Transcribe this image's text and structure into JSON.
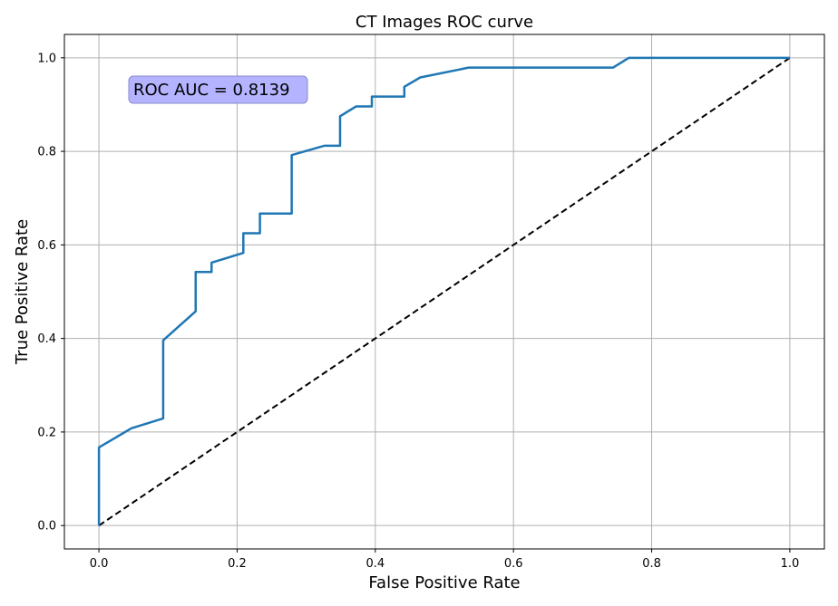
{
  "chart_data": {
    "type": "line",
    "title": "CT Images ROC curve",
    "xlabel": "False Positive Rate",
    "ylabel": "True Positive Rate",
    "xlim": [
      -0.05,
      1.05
    ],
    "ylim": [
      -0.05,
      1.05
    ],
    "xticks": [
      0.0,
      0.2,
      0.4,
      0.6,
      0.8,
      1.0
    ],
    "yticks": [
      0.0,
      0.2,
      0.4,
      0.6,
      0.8,
      1.0
    ],
    "xtick_labels": [
      "0.0",
      "0.2",
      "0.4",
      "0.6",
      "0.8",
      "1.0"
    ],
    "ytick_labels": [
      "0.0",
      "0.2",
      "0.4",
      "0.6",
      "0.8",
      "1.0"
    ],
    "grid": true,
    "annotation": "ROC AUC = 0.8139",
    "series": [
      {
        "color": "#1f77b4",
        "style": "solid",
        "x": [
          0.0,
          0.0,
          0.047,
          0.093,
          0.093,
          0.14,
          0.14,
          0.163,
          0.163,
          0.209,
          0.209,
          0.233,
          0.233,
          0.279,
          0.279,
          0.326,
          0.349,
          0.349,
          0.372,
          0.395,
          0.395,
          0.442,
          0.442,
          0.465,
          0.535,
          0.744,
          0.767,
          1.0
        ],
        "y": [
          0.0,
          0.167,
          0.208,
          0.229,
          0.396,
          0.458,
          0.542,
          0.542,
          0.562,
          0.583,
          0.625,
          0.625,
          0.667,
          0.667,
          0.792,
          0.812,
          0.812,
          0.875,
          0.896,
          0.896,
          0.917,
          0.917,
          0.938,
          0.958,
          0.979,
          0.979,
          1.0,
          1.0
        ]
      },
      {
        "color": "#000000",
        "style": "dashed",
        "x": [
          0.0,
          1.0
        ],
        "y": [
          0.0,
          1.0
        ]
      }
    ]
  }
}
